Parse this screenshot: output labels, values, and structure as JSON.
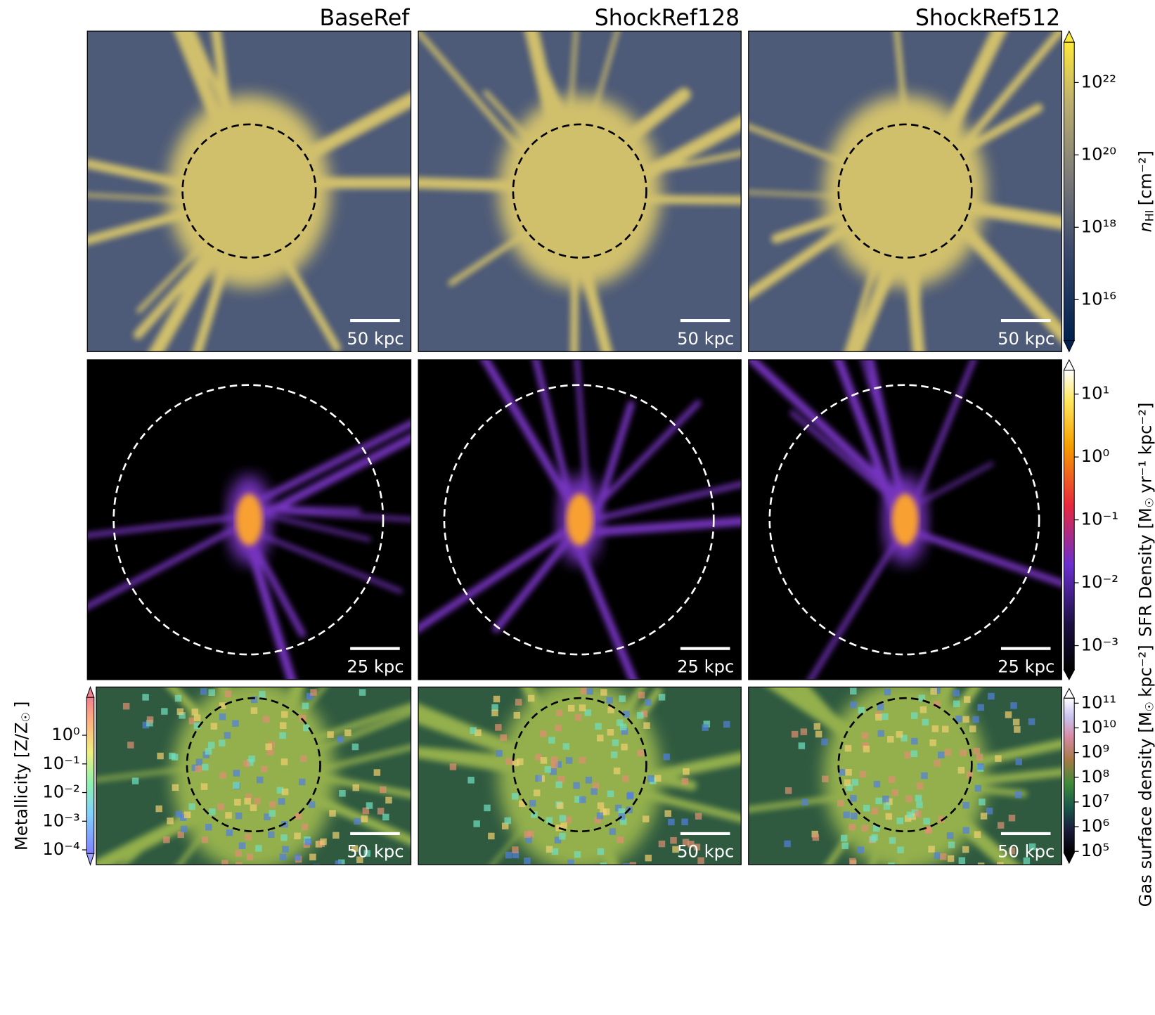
{
  "panel_titles": [
    "BaseRef",
    "ShockRef128",
    "ShockRef512"
  ],
  "rows": [
    {
      "scale_bar": "50 kpc",
      "colorbars": [
        {
          "label": {
            "symbol": "n",
            "subscript": "HI",
            "unit": "[cm⁻²]"
          },
          "range": [
            740000000000000.0,
            1.3e+23
          ],
          "ticks": [
            {
              "value": 1e+16,
              "label": "10¹⁶"
            },
            {
              "value": 1e+18,
              "label": "10¹⁸"
            },
            {
              "value": 1e+20,
              "label": "10²⁰"
            },
            {
              "value": 1e+22,
              "label": "10²²"
            }
          ]
        }
      ]
    },
    {
      "scale_bar": "25 kpc",
      "colorbars": [
        {
          "label": {
            "symbol": "SFR Density [M",
            "subscript": "☉",
            "unit": "yr⁻¹ kpc⁻²]"
          },
          "range": [
            0.00041,
            24
          ],
          "ticks": [
            {
              "value": 0.001,
              "label": "10⁻³"
            },
            {
              "value": 0.01,
              "label": "10⁻²"
            },
            {
              "value": 0.1,
              "label": "10⁻¹"
            },
            {
              "value": 1,
              "label": "10⁰"
            },
            {
              "value": 10,
              "label": "10¹"
            }
          ]
        }
      ]
    },
    {
      "scale_bar": "50 kpc",
      "colorbars": [
        {
          "label": {
            "symbol": "Gas surface density [M",
            "subscript": "☉",
            "unit": "kpc⁻²]"
          },
          "range": [
            87000.0,
            160000000000.0
          ],
          "ticks": [
            {
              "value": 100000.0,
              "label": "10⁵"
            },
            {
              "value": 1000000.0,
              "label": "10⁶"
            },
            {
              "value": 10000000.0,
              "label": "10⁷"
            },
            {
              "value": 100000000.0,
              "label": "10⁸"
            },
            {
              "value": 1000000000.0,
              "label": "10⁹"
            },
            {
              "value": 10000000000.0,
              "label": "10¹⁰"
            },
            {
              "value": 100000000000.0,
              "label": "10¹¹"
            }
          ]
        },
        {
          "label": {
            "symbol": "Metallicity [Z/Z",
            "subscript": "☉",
            "unit": "]"
          },
          "range": [
            7.4e-05,
            21
          ],
          "ticks": [
            {
              "value": 0.0001,
              "label": "10⁻⁴"
            },
            {
              "value": 0.001,
              "label": "10⁻³"
            },
            {
              "value": 0.01,
              "label": "10⁻²"
            },
            {
              "value": 0.1,
              "label": "10⁻¹"
            },
            {
              "value": 1,
              "label": "10⁰"
            }
          ]
        }
      ]
    }
  ]
}
